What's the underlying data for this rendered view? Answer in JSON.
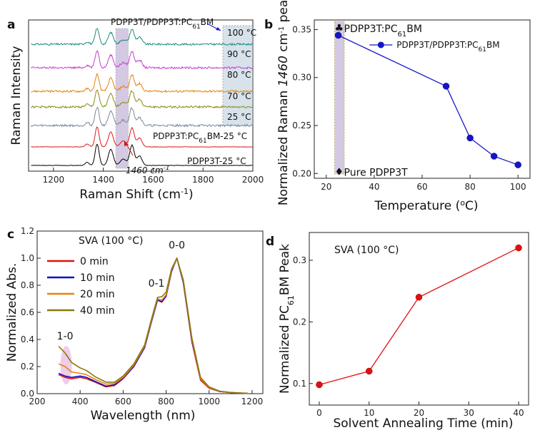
{
  "chart_data": [
    {
      "panel": "a",
      "type": "line",
      "xlabel": "Raman Shift (cm",
      "xlabel_sup": "-1",
      "xlabel_end": ")",
      "ylabel": "Raman Intensity",
      "xlim": [
        1100,
        2000
      ],
      "xticks": [
        "1200",
        "1400",
        "1600",
        "1800",
        "2000"
      ],
      "yticks_shown": false,
      "header_label": "PDPP3T/PDPP3T:PC",
      "header_sub": "61",
      "header_end": "BM",
      "shaded_region_x": [
        1450,
        1500
      ],
      "shaded_region_color": "#b8a6cf",
      "temp_box_color": "#b9cbd9",
      "peak_marker_label": "1460 cm",
      "peak_marker_sup": "-1",
      "peak_marker_x": 1460,
      "series": [
        {
          "name": "100 °C",
          "color": "#1a8c80"
        },
        {
          "name": "90 °C",
          "color": "#c83cd0"
        },
        {
          "name": "80 °C",
          "color": "#e6820c"
        },
        {
          "name": "70 °C",
          "color": "#8a8a18"
        },
        {
          "name": "25 °C",
          "color": "#7a8a9c"
        },
        {
          "name": "PDPP3T:PC",
          "sub": "61",
          "end": "BM-25 °C",
          "color": "#e01818"
        },
        {
          "name": "PDPP3T-25 °C",
          "color": "#000000"
        }
      ],
      "peaks": [
        {
          "x": 1335,
          "h": 0.15,
          "w": 8
        },
        {
          "x": 1375,
          "h": 1.0,
          "w": 8
        },
        {
          "x": 1430,
          "h": 0.75,
          "w": 10
        },
        {
          "x": 1480,
          "h": 0.3,
          "w": 12
        },
        {
          "x": 1515,
          "h": 0.95,
          "w": 9
        },
        {
          "x": 1545,
          "h": 0.45,
          "w": 10
        }
      ]
    },
    {
      "panel": "b",
      "type": "line",
      "xlabel": "Temperature (",
      "xlabel_sup": "o",
      "xlabel_end": "C)",
      "ylabel": "Normalized Raman ",
      "ylabel_italic": "1460",
      "ylabel_mid": " cm",
      "ylabel_sup": "-1",
      "ylabel_end": " peak",
      "xlim": [
        15,
        105
      ],
      "ylim": [
        0.195,
        0.36
      ],
      "xticks": [
        20,
        40,
        60,
        80,
        100
      ],
      "yticks": [
        0.2,
        0.25,
        0.3,
        0.35
      ],
      "ytick_labels": [
        "0.20",
        "0.25",
        "0.30",
        "0.35"
      ],
      "shaded_region_x": [
        23.5,
        27.5
      ],
      "shaded_region_color": "#b8a6cf",
      "series": [
        {
          "name": "PDPP3T/PDPP3T:PC",
          "sub": "61",
          "end": "BM",
          "color": "#1515c8",
          "x": [
            25,
            70,
            80,
            90,
            100
          ],
          "y": [
            0.344,
            0.291,
            0.237,
            0.218,
            0.209
          ]
        }
      ],
      "special_points": [
        {
          "label": "PDPP3T:PC",
          "sub": "61",
          "end": "BM",
          "x": 25,
          "y": 0.352,
          "color": "#111111",
          "symbol": "♣"
        },
        {
          "label": "Pure PDPP3T",
          "x": 25,
          "y": 0.202,
          "color": "#d81818",
          "symbol": "♦"
        }
      ],
      "legend_marker_x": 44,
      "legend_marker_y": 0.334
    },
    {
      "panel": "c",
      "type": "line",
      "title": "SVA (100 °C)",
      "xlabel": "Wavelength (nm)",
      "ylabel": "Normalized Abs.",
      "xlim": [
        200,
        1250
      ],
      "ylim": [
        0,
        1.2
      ],
      "xticks": [
        200,
        400,
        600,
        800,
        1000,
        1200
      ],
      "yticks": [
        0.0,
        0.2,
        0.4,
        0.6,
        0.8,
        1.0,
        1.2
      ],
      "ytick_labels": [
        "0.0",
        "0.2",
        "0.4",
        "0.6",
        "0.8",
        "1.0",
        "1.2"
      ],
      "annotations": [
        {
          "text": "0-0",
          "x": 850,
          "y": 1.07
        },
        {
          "text": "0-1",
          "x": 755,
          "y": 0.79
        },
        {
          "text": "1-0",
          "x": 330,
          "y": 0.4
        }
      ],
      "shaded_peak_color": "#e8b8e0",
      "series": [
        {
          "name": "0 min",
          "color": "#e01010",
          "x": [
            300,
            330,
            360,
            400,
            430,
            470,
            520,
            560,
            600,
            650,
            700,
            730,
            760,
            780,
            800,
            825,
            850,
            880,
            920,
            960,
            1000,
            1050,
            1100,
            1150,
            1180
          ],
          "y": [
            0.14,
            0.12,
            0.11,
            0.12,
            0.11,
            0.085,
            0.05,
            0.06,
            0.11,
            0.2,
            0.34,
            0.52,
            0.69,
            0.675,
            0.72,
            0.9,
            1.0,
            0.82,
            0.38,
            0.1,
            0.04,
            0.015,
            0.008,
            0.004,
            0.003
          ]
        },
        {
          "name": "10 min",
          "color": "#1010c8",
          "x": [
            300,
            330,
            360,
            400,
            430,
            470,
            520,
            560,
            600,
            650,
            700,
            730,
            760,
            780,
            800,
            825,
            850,
            880,
            920,
            960,
            1000,
            1050,
            1100,
            1150,
            1180
          ],
          "y": [
            0.15,
            0.13,
            0.12,
            0.13,
            0.12,
            0.09,
            0.055,
            0.065,
            0.115,
            0.2,
            0.34,
            0.52,
            0.69,
            0.68,
            0.72,
            0.9,
            1.0,
            0.82,
            0.39,
            0.11,
            0.045,
            0.016,
            0.008,
            0.004,
            0.003
          ]
        },
        {
          "name": "20 min",
          "color": "#e8820c",
          "x": [
            300,
            330,
            360,
            400,
            430,
            470,
            520,
            560,
            600,
            650,
            700,
            730,
            760,
            780,
            800,
            825,
            850,
            880,
            920,
            960,
            1000,
            1050,
            1100,
            1150,
            1180
          ],
          "y": [
            0.22,
            0.2,
            0.16,
            0.15,
            0.14,
            0.105,
            0.07,
            0.075,
            0.12,
            0.21,
            0.35,
            0.53,
            0.7,
            0.69,
            0.73,
            0.91,
            1.0,
            0.83,
            0.4,
            0.11,
            0.045,
            0.017,
            0.008,
            0.004,
            0.003
          ]
        },
        {
          "name": "40 min",
          "color": "#8a7a0c",
          "x": [
            300,
            330,
            360,
            400,
            430,
            470,
            520,
            560,
            600,
            650,
            700,
            730,
            760,
            780,
            800,
            825,
            850,
            880,
            920,
            960,
            1000,
            1050,
            1100,
            1150,
            1180
          ],
          "y": [
            0.35,
            0.3,
            0.23,
            0.19,
            0.17,
            0.125,
            0.085,
            0.085,
            0.13,
            0.22,
            0.36,
            0.54,
            0.71,
            0.715,
            0.75,
            0.92,
            1.0,
            0.84,
            0.41,
            0.12,
            0.05,
            0.018,
            0.009,
            0.005,
            0.003
          ]
        }
      ]
    },
    {
      "panel": "d",
      "type": "line",
      "title": "SVA (100 °C)",
      "xlabel": "Solvent Annealing Time (min)",
      "ylabel": "Normalized PC",
      "ylabel_sub": "61",
      "ylabel_end": "BM Peak",
      "xlim": [
        -2,
        42
      ],
      "ylim": [
        0.065,
        0.345
      ],
      "xticks": [
        0,
        10,
        20,
        30,
        40
      ],
      "yticks": [
        0.1,
        0.2,
        0.3
      ],
      "ytick_labels": [
        "0.1",
        "0.2",
        "0.3"
      ],
      "series": [
        {
          "color": "#e01010",
          "x": [
            0,
            10,
            20,
            40
          ],
          "y": [
            0.098,
            0.12,
            0.24,
            0.32
          ]
        }
      ]
    }
  ]
}
